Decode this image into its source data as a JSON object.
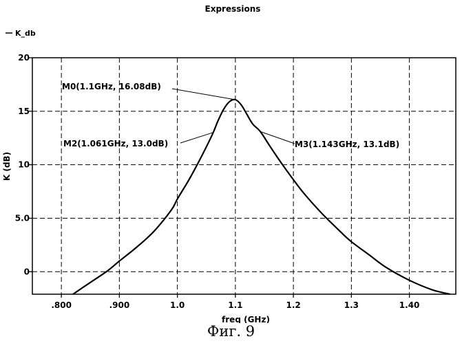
{
  "caption": "Фиг. 9",
  "chart_data": {
    "type": "line",
    "title": "Expressions",
    "xlabel": "freq (GHz)",
    "ylabel": "K (dB)",
    "xlim": [
      0.75,
      1.48
    ],
    "ylim": [
      -2.1,
      20
    ],
    "grid": true,
    "legend_position": "top-left",
    "x_ticks": [
      {
        "value": 0.8,
        "label": ".800"
      },
      {
        "value": 0.9,
        "label": ".900"
      },
      {
        "value": 1.0,
        "label": "1.0"
      },
      {
        "value": 1.1,
        "label": "1.1"
      },
      {
        "value": 1.2,
        "label": "1.2"
      },
      {
        "value": 1.3,
        "label": "1.3"
      },
      {
        "value": 1.4,
        "label": "1.40"
      }
    ],
    "y_ticks": [
      {
        "value": 20,
        "label": "20"
      },
      {
        "value": 15,
        "label": "15"
      },
      {
        "value": 10,
        "label": "10"
      },
      {
        "value": 5,
        "label": "5.0"
      },
      {
        "value": 0,
        "label": "0"
      }
    ],
    "series": [
      {
        "name": "K_db",
        "color": "#000000",
        "x": [
          0.82,
          0.85,
          0.88,
          0.9,
          0.93,
          0.96,
          0.99,
          1.0,
          1.02,
          1.04,
          1.06,
          1.07,
          1.08,
          1.09,
          1.1,
          1.11,
          1.12,
          1.13,
          1.143,
          1.16,
          1.18,
          1.2,
          1.22,
          1.25,
          1.28,
          1.3,
          1.33,
          1.36,
          1.4,
          1.44,
          1.47
        ],
        "y": [
          -2.1,
          -1.0,
          0.1,
          1.0,
          2.3,
          3.8,
          5.8,
          6.8,
          8.6,
          10.6,
          12.8,
          14.1,
          15.2,
          15.9,
          16.08,
          15.6,
          14.7,
          13.8,
          13.1,
          11.7,
          10.1,
          8.6,
          7.2,
          5.4,
          3.8,
          2.8,
          1.6,
          0.4,
          -0.8,
          -1.7,
          -2.1
        ]
      }
    ],
    "markers": [
      {
        "id": "M0",
        "label": "M0(1.1GHz, 16.08dB)",
        "x": 1.1,
        "y": 16.08
      },
      {
        "id": "M2",
        "label": "M2(1.061GHz, 13.0dB)",
        "x": 1.061,
        "y": 13.0
      },
      {
        "id": "M3",
        "label": "M3(1.143GHz, 13.1dB)",
        "x": 1.143,
        "y": 13.1
      }
    ]
  }
}
